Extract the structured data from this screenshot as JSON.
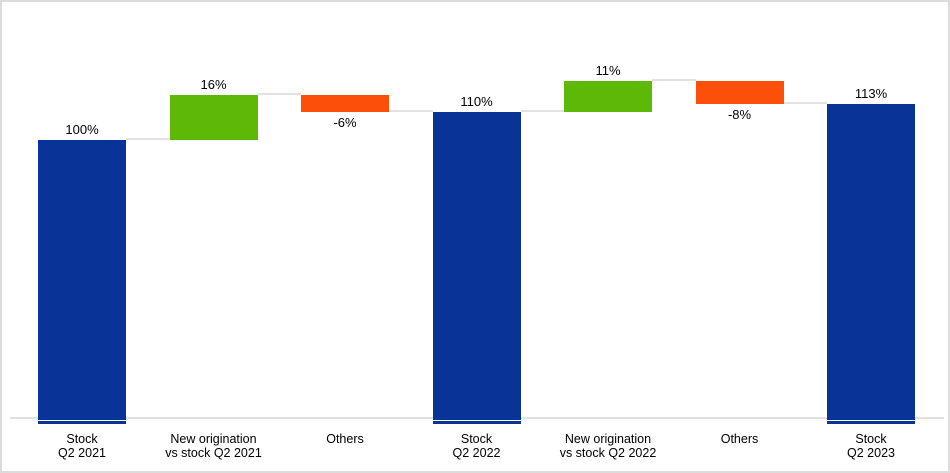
{
  "chart_data": {
    "type": "bar",
    "subtype": "waterfall",
    "title": "",
    "unit": "%",
    "ylim": [
      0,
      130
    ],
    "grid": false,
    "legend": false,
    "bars": [
      {
        "category_line1": "Stock",
        "category_line2": "Q2 2021",
        "value": 100,
        "display": "100%",
        "kind": "total",
        "label_position": "above"
      },
      {
        "category_line1": "New origination",
        "category_line2": "vs stock Q2 2021",
        "value": 16,
        "display": "16%",
        "kind": "increase",
        "label_position": "above"
      },
      {
        "category_line1": "Others",
        "category_line2": "",
        "value": -6,
        "display": "-6%",
        "kind": "decrease",
        "label_position": "below"
      },
      {
        "category_line1": "Stock",
        "category_line2": "Q2 2022",
        "value": 110,
        "display": "110%",
        "kind": "total",
        "label_position": "above"
      },
      {
        "category_line1": "New origination",
        "category_line2": "vs stock Q2 2022",
        "value": 11,
        "display": "11%",
        "kind": "increase",
        "label_position": "above"
      },
      {
        "category_line1": "Others",
        "category_line2": "",
        "value": -8,
        "display": "-8%",
        "kind": "decrease",
        "label_position": "below"
      },
      {
        "category_line1": "Stock",
        "category_line2": "Q2 2023",
        "value": 113,
        "display": "113%",
        "kind": "total",
        "label_position": "above"
      }
    ],
    "colors": {
      "total": "#0A3397",
      "increase": "#5EB808",
      "decrease": "#FC4F0A",
      "connector": "#E2E2E2",
      "axis_line": "#E0E0E0",
      "label_text": "#000000",
      "frame_border": "#DCDCDC",
      "background": "#FFFFFF"
    }
  }
}
